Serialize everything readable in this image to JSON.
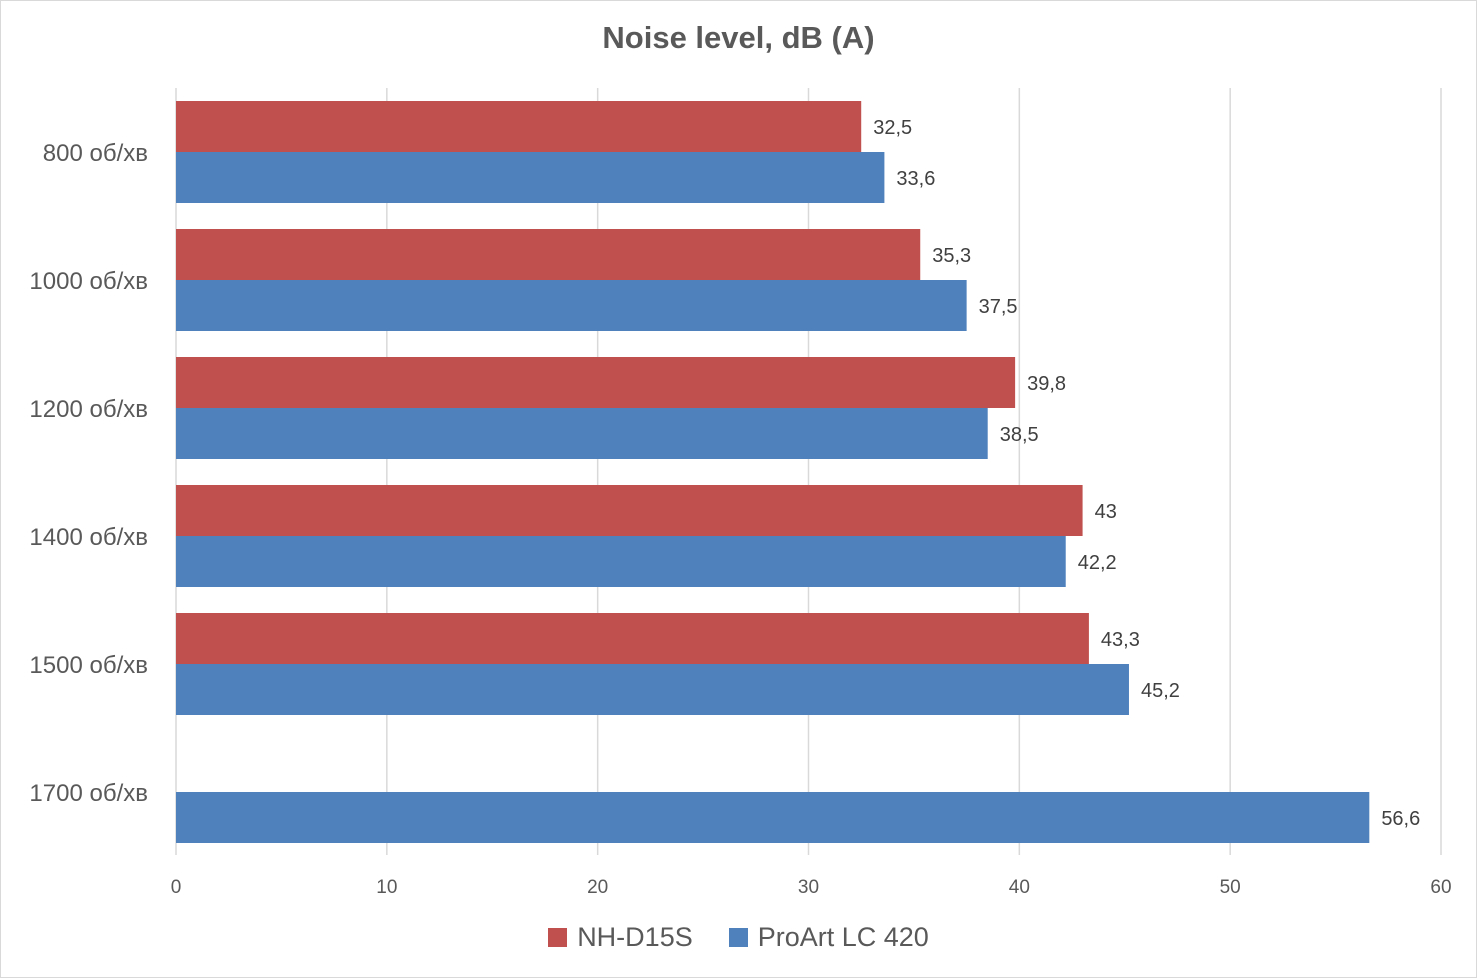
{
  "chart_data": {
    "type": "bar",
    "orientation": "horizontal",
    "title": "Noise level, dB (A)",
    "categories": [
      "800 об/хв",
      "1000 об/хв",
      "1200 об/хв",
      "1400 об/хв",
      "1500 об/хв",
      "1700 об/хв"
    ],
    "series": [
      {
        "name": "NH-D15S",
        "color": "#C0504D",
        "values": [
          32.5,
          35.3,
          39.8,
          43,
          43.3,
          null
        ],
        "labels": [
          "32,5",
          "35,3",
          "39,8",
          "43",
          "43,3",
          null
        ]
      },
      {
        "name": "ProArt LC 420",
        "color": "#4F81BD",
        "values": [
          33.6,
          37.5,
          38.5,
          42.2,
          45.2,
          56.6
        ],
        "labels": [
          "33,6",
          "37,5",
          "38,5",
          "42,2",
          "45,2",
          "56,6"
        ]
      }
    ],
    "xlim": [
      0,
      60
    ],
    "xticks": [
      0,
      10,
      20,
      30,
      40,
      50,
      60
    ],
    "grid": true,
    "legend": "bottom"
  }
}
